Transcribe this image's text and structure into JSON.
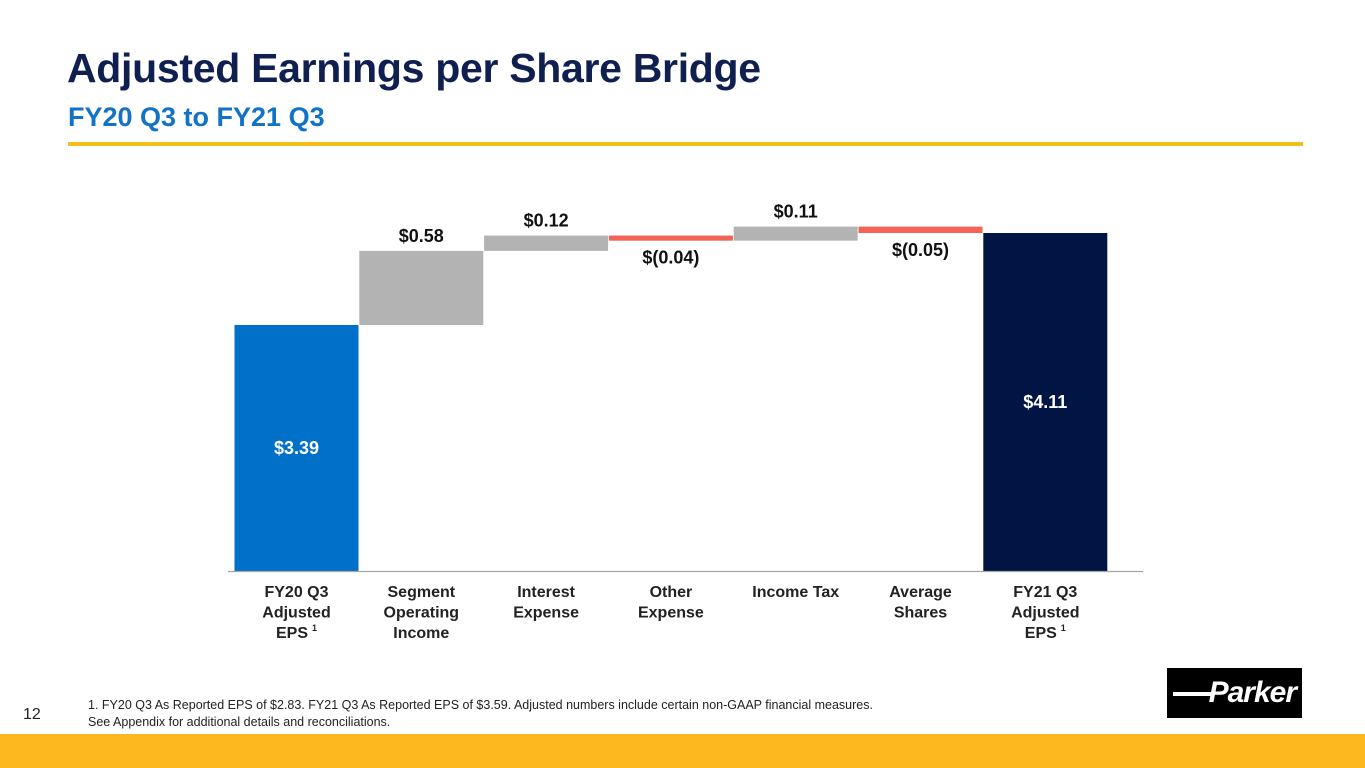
{
  "header": {
    "title": "Adjusted Earnings per Share Bridge",
    "subtitle": "FY20 Q3 to FY21 Q3"
  },
  "colors": {
    "title": "#0f1f4f",
    "subtitle": "#1273c6",
    "accent_rule": "#f5bd1c",
    "start_bar": "#0070c8",
    "end_bar": "#001544",
    "increase": "#b3b3b3",
    "decrease": "#f36356",
    "bottom_band": "#fdb71f"
  },
  "chart_data": {
    "type": "waterfall",
    "title": "Adjusted Earnings per Share Bridge",
    "subtitle": "FY20 Q3 to FY21 Q3",
    "ylim": [
      1.465,
      4.3
    ],
    "grid": false,
    "categories": [
      [
        "FY20 Q3",
        "Adjusted",
        "EPS"
      ],
      [
        "Segment",
        "Operating",
        "Income"
      ],
      [
        "Interest",
        "Expense"
      ],
      [
        "Other",
        "Expense"
      ],
      [
        "Income Tax"
      ],
      [
        "Average",
        "Shares"
      ],
      [
        "FY21 Q3",
        "Adjusted",
        "EPS"
      ]
    ],
    "category_footnotes": [
      "1",
      "",
      "",
      "",
      "",
      "",
      "1"
    ],
    "steps": [
      {
        "kind": "total",
        "value": 3.39,
        "label": "$3.39"
      },
      {
        "kind": "delta",
        "value": 0.58,
        "label": "$0.58"
      },
      {
        "kind": "delta",
        "value": 0.12,
        "label": "$0.12"
      },
      {
        "kind": "delta",
        "value": -0.04,
        "label": "$(0.04)"
      },
      {
        "kind": "delta",
        "value": 0.11,
        "label": "$0.11"
      },
      {
        "kind": "delta",
        "value": -0.05,
        "label": "$(0.05)"
      },
      {
        "kind": "total",
        "value": 4.11,
        "label": "$4.11"
      }
    ]
  },
  "footer": {
    "page_number": "12",
    "footnote_line1": "1. FY20 Q3 As Reported EPS of $2.83. FY21 Q3 As Reported EPS of $3.59.  Adjusted numbers include certain non-GAAP financial measures.",
    "footnote_line2": "See Appendix for additional details and reconciliations.",
    "logo_text": "Parker"
  }
}
